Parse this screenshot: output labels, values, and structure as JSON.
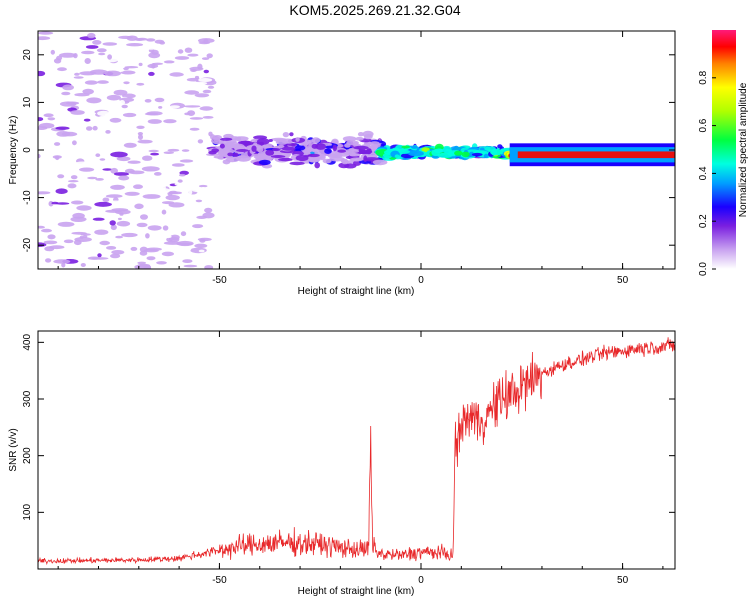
{
  "title": "KOM5.2025.269.21.32.G04",
  "chart_data": [
    {
      "type": "heatmap",
      "xlabel": "Height of straight line (km)",
      "ylabel": "Frequency (Hz)",
      "xlim": [
        -95,
        63
      ],
      "ylim": [
        -25,
        25
      ],
      "xticks": [
        -50,
        0,
        50
      ],
      "yticks": [
        -20,
        -10,
        0,
        10,
        20
      ],
      "colorbar": {
        "label": "Normalized spectral amplitude",
        "range": [
          0,
          1
        ],
        "ticks": [
          "0.0",
          "0.2",
          "0.4",
          "0.6",
          "0.8"
        ],
        "tick_values": [
          0.0,
          0.2,
          0.4,
          0.6,
          0.8
        ]
      },
      "features": [
        {
          "name": "noise scatter",
          "x_range": [
            -95,
            -52
          ],
          "y_range": [
            -25,
            25
          ],
          "amplitude": 0.05
        },
        {
          "name": "dispersed signal",
          "x_range": [
            -52,
            -10
          ],
          "y_center": 0,
          "y_spread": 4,
          "amplitude": 0.15
        },
        {
          "name": "emerging line",
          "x_range": [
            -10,
            22
          ],
          "y_center": -0.5,
          "y_spread": 1.5,
          "amplitude": 0.45
        },
        {
          "name": "strong line",
          "x_range": [
            22,
            63
          ],
          "y_center": -1,
          "y_spread": 0.8,
          "amplitude": 0.9
        }
      ]
    },
    {
      "type": "line",
      "xlabel": "Height of straight line (km)",
      "ylabel": "SNR (v/v)",
      "xlim": [
        -95,
        63
      ],
      "ylim": [
        0,
        420
      ],
      "xticks": [
        -50,
        0,
        50
      ],
      "yticks": [
        100,
        200,
        300,
        400
      ],
      "series": [
        {
          "name": "SNR",
          "color": "#e8282a",
          "x": [
            -95,
            -80,
            -70,
            -60,
            -55,
            -50,
            -45,
            -40,
            -35,
            -30,
            -25,
            -20,
            -15,
            -13,
            -12.5,
            -12,
            -11,
            -10,
            -5,
            0,
            5,
            8,
            8.5,
            9,
            10,
            12,
            15,
            20,
            25,
            30,
            35,
            40,
            45,
            50,
            55,
            60,
            63
          ],
          "values": [
            14,
            15,
            16,
            19,
            26,
            33,
            40,
            44,
            46,
            46,
            44,
            38,
            34,
            35,
            215,
            40,
            32,
            26,
            24,
            30,
            28,
            25,
            245,
            215,
            255,
            270,
            260,
            300,
            320,
            345,
            360,
            370,
            380,
            385,
            390,
            393,
            395
          ]
        }
      ]
    }
  ]
}
